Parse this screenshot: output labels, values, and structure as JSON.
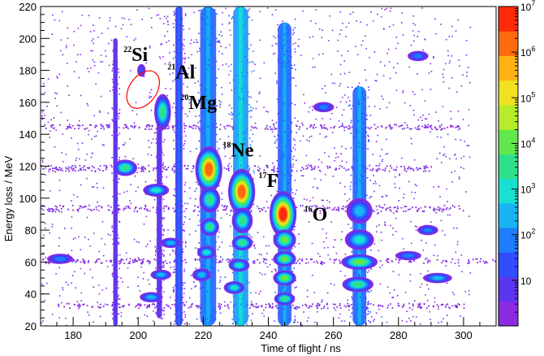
{
  "chart_data": {
    "type": "heatmap",
    "title": "",
    "xlabel": "Time of flight / ns",
    "ylabel": "Energy loss / MeV",
    "xlim": [
      170,
      310
    ],
    "ylim": [
      20,
      220
    ],
    "x_ticks": [
      180,
      200,
      220,
      240,
      260,
      280,
      300
    ],
    "y_ticks": [
      20,
      40,
      60,
      80,
      100,
      120,
      140,
      160,
      180,
      200,
      220
    ],
    "colorbar": {
      "scale": "log",
      "range": [
        1,
        10000000
      ],
      "ticks": [
        {
          "value": 10,
          "base": "10",
          "exp": ""
        },
        {
          "value": 100,
          "base": "10",
          "exp": "2"
        },
        {
          "value": 1000,
          "base": "10",
          "exp": "3"
        },
        {
          "value": 10000,
          "base": "10",
          "exp": "4"
        },
        {
          "value": 100000,
          "base": "10",
          "exp": "5"
        },
        {
          "value": 1000000,
          "base": "10",
          "exp": "6"
        },
        {
          "value": 10000000,
          "base": "10",
          "exp": "7"
        }
      ],
      "colors": [
        "#8a2be2",
        "#5b35f0",
        "#2f4cff",
        "#1f7dff",
        "#17b5f2",
        "#19e0d0",
        "#2ee08a",
        "#62e84a",
        "#b6ec2a",
        "#f0e21e",
        "#ffb312",
        "#ff6a0e",
        "#ff2a0a"
      ]
    },
    "annotations": [
      {
        "mass": "22",
        "element": "Si",
        "x": 195.5,
        "y": 186
      },
      {
        "mass": "21",
        "element": "Al",
        "x": 209,
        "y": 175
      },
      {
        "mass": "20",
        "element": "Mg",
        "x": 213,
        "y": 156
      },
      {
        "mass": "18",
        "element": "Ne",
        "x": 226,
        "y": 126
      },
      {
        "mass": "17",
        "element": "F",
        "x": 237,
        "y": 107
      },
      {
        "mass": "16",
        "element": "O",
        "x": 251,
        "y": 86
      }
    ],
    "highlight_ellipse": {
      "cx": 201.5,
      "cy": 168,
      "rx": 4.2,
      "ry": 13,
      "rotate_deg": 35,
      "color": "#ff0000"
    },
    "ridges": [
      {
        "x": 212.5,
        "y0": 20,
        "y1": 220,
        "width": 1.6,
        "level": 1
      },
      {
        "x": 221.5,
        "y0": 20,
        "y1": 220,
        "width": 3.5,
        "level": 2
      },
      {
        "x": 231.5,
        "y0": 20,
        "y1": 220,
        "width": 3.3,
        "level": 3
      },
      {
        "x": 245,
        "y0": 20,
        "y1": 210,
        "width": 3.0,
        "level": 2
      },
      {
        "x": 268,
        "y0": 20,
        "y1": 170,
        "width": 3.0,
        "level": 2
      },
      {
        "x": 193,
        "y0": 20,
        "y1": 200,
        "width": 1.0,
        "level": 0
      },
      {
        "x": 206.5,
        "y0": 25,
        "y1": 160,
        "width": 1.2,
        "level": 0
      }
    ],
    "hbands": [
      {
        "y": 94,
        "x0": 170,
        "x1": 300,
        "height": 4,
        "level": 0
      },
      {
        "y": 119,
        "x0": 170,
        "x1": 290,
        "height": 4,
        "level": 0
      },
      {
        "y": 145,
        "x0": 170,
        "x1": 300,
        "height": 3,
        "level": 0
      },
      {
        "y": 61,
        "x0": 170,
        "x1": 310,
        "height": 3,
        "level": 0
      },
      {
        "y": 33,
        "x0": 175,
        "x1": 300,
        "height": 3,
        "level": 0
      }
    ],
    "clusters": [
      {
        "x": 221.7,
        "y": 118,
        "sx": 2.6,
        "sy": 9,
        "level": 11
      },
      {
        "x": 222,
        "y": 99,
        "sx": 2.0,
        "sy": 5,
        "level": 6
      },
      {
        "x": 222,
        "y": 82,
        "sx": 1.8,
        "sy": 3.5,
        "level": 6
      },
      {
        "x": 221,
        "y": 66,
        "sx": 1.8,
        "sy": 2.5,
        "level": 5
      },
      {
        "x": 219.5,
        "y": 52,
        "sx": 1.8,
        "sy": 2.5,
        "level": 4
      },
      {
        "x": 231.8,
        "y": 104,
        "sx": 2.6,
        "sy": 9,
        "level": 11
      },
      {
        "x": 232,
        "y": 86,
        "sx": 2.0,
        "sy": 5,
        "level": 6
      },
      {
        "x": 232,
        "y": 72,
        "sx": 2.0,
        "sy": 3,
        "level": 6
      },
      {
        "x": 231,
        "y": 58,
        "sx": 2.0,
        "sy": 2.5,
        "level": 5
      },
      {
        "x": 229.5,
        "y": 44,
        "sx": 2.0,
        "sy": 2.5,
        "level": 5
      },
      {
        "x": 244.5,
        "y": 90,
        "sx": 2.6,
        "sy": 9,
        "level": 12
      },
      {
        "x": 245,
        "y": 74,
        "sx": 2.2,
        "sy": 4,
        "level": 7
      },
      {
        "x": 245,
        "y": 62,
        "sx": 2.2,
        "sy": 3,
        "level": 7
      },
      {
        "x": 245,
        "y": 50,
        "sx": 2.2,
        "sy": 3,
        "level": 7
      },
      {
        "x": 245,
        "y": 37,
        "sx": 2.0,
        "sy": 2.5,
        "level": 6
      },
      {
        "x": 268,
        "y": 60,
        "sx": 3.5,
        "sy": 3,
        "level": 7
      },
      {
        "x": 267.5,
        "y": 46,
        "sx": 3.0,
        "sy": 3,
        "level": 6
      },
      {
        "x": 268,
        "y": 74,
        "sx": 2.8,
        "sy": 4,
        "level": 5
      },
      {
        "x": 268,
        "y": 92,
        "sx": 2.5,
        "sy": 5,
        "level": 4
      },
      {
        "x": 207.5,
        "y": 154,
        "sx": 1.6,
        "sy": 7,
        "level": 6
      },
      {
        "x": 205.5,
        "y": 105,
        "sx": 2.5,
        "sy": 2.5,
        "level": 5
      },
      {
        "x": 196,
        "y": 119,
        "sx": 2.3,
        "sy": 3.2,
        "level": 6
      },
      {
        "x": 210,
        "y": 72,
        "sx": 2.0,
        "sy": 2.0,
        "level": 4
      },
      {
        "x": 207,
        "y": 52,
        "sx": 2.0,
        "sy": 2.0,
        "level": 4
      },
      {
        "x": 204,
        "y": 38,
        "sx": 2.2,
        "sy": 2.0,
        "level": 4
      },
      {
        "x": 176,
        "y": 62,
        "sx": 2.5,
        "sy": 2.0,
        "level": 3
      },
      {
        "x": 292,
        "y": 50,
        "sx": 2.8,
        "sy": 2.0,
        "level": 4
      },
      {
        "x": 283,
        "y": 64,
        "sx": 2.5,
        "sy": 1.8,
        "level": 3
      },
      {
        "x": 289,
        "y": 80,
        "sx": 2.0,
        "sy": 2.0,
        "level": 3
      },
      {
        "x": 286,
        "y": 189,
        "sx": 2.0,
        "sy": 2.0,
        "level": 3
      },
      {
        "x": 257,
        "y": 157,
        "sx": 2.0,
        "sy": 2.0,
        "level": 3
      },
      {
        "x": 201,
        "y": 180,
        "sx": 0.8,
        "sy": 2.5,
        "level": 2
      }
    ],
    "noise_region": {
      "x0": 170,
      "x1": 302,
      "y0": 20,
      "y1": 220
    }
  }
}
